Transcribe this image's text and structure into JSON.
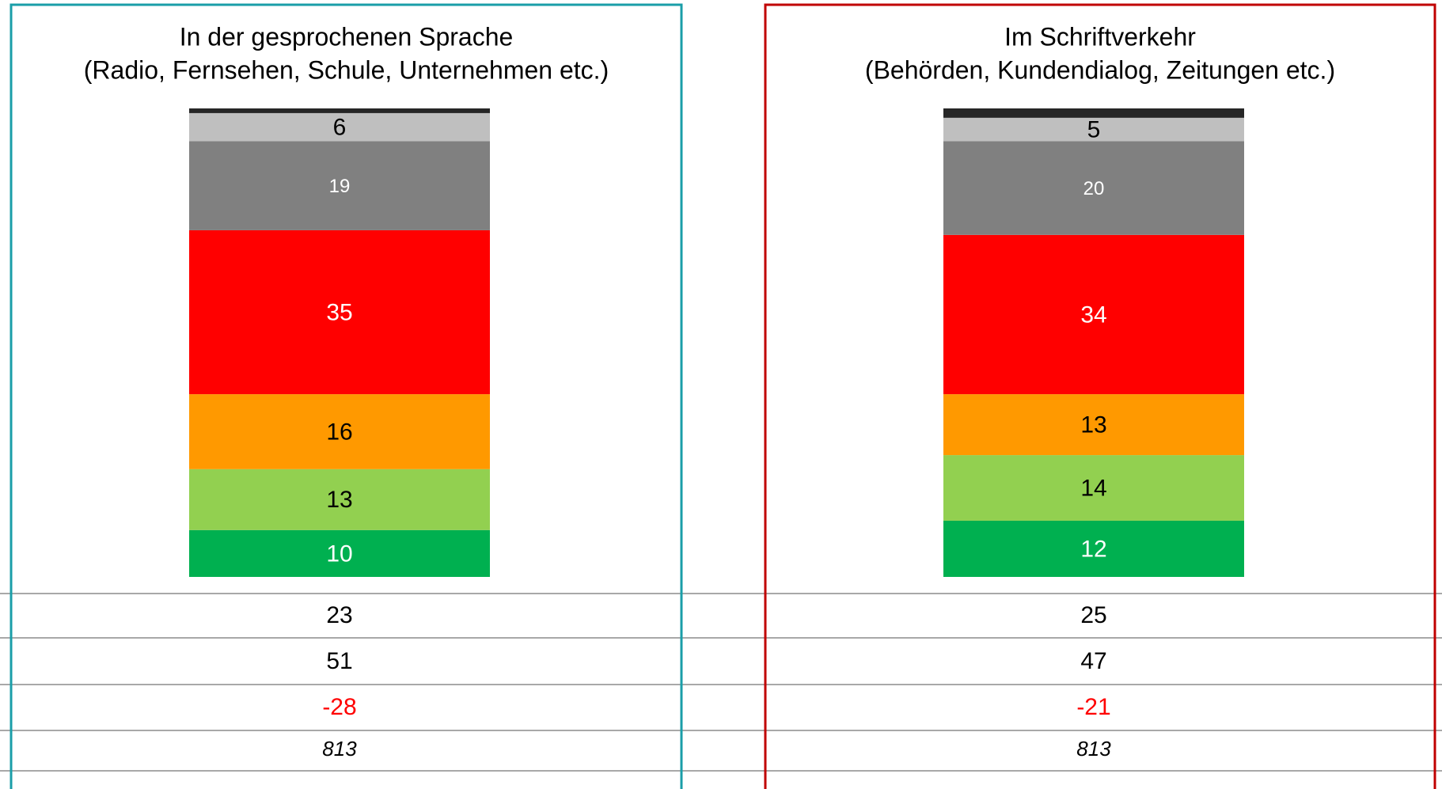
{
  "chart_data": [
    {
      "type": "stacked_bar",
      "title": "In der gesprochenen Sprache",
      "subtitle": "(Radio, Fernsehen, Schule, Unternehmen etc.)",
      "ylim": [
        0,
        100
      ],
      "frame_color": "#1a9ea8",
      "series": [
        {
          "color": "#00b050",
          "label_color": "#ffffff",
          "values": [
            10
          ]
        },
        {
          "color": "#92d050",
          "label_color": "#000000",
          "values": [
            13
          ]
        },
        {
          "color": "#ff9900",
          "label_color": "#000000",
          "values": [
            16
          ]
        },
        {
          "color": "#ff0000",
          "label_color": "#ffffff",
          "values": [
            35
          ]
        },
        {
          "color": "#808080",
          "label_color": "#ffffff",
          "values": [
            19
          ]
        },
        {
          "color": "#bfbfbf",
          "label_color": "#000000",
          "values": [
            6
          ]
        },
        {
          "color": "#262626",
          "values": [
            1
          ]
        }
      ],
      "summary": [
        23,
        51,
        -28,
        813
      ]
    },
    {
      "type": "stacked_bar",
      "title": "Im Schriftverkehr",
      "subtitle": "(Behörden, Kundendialog, Zeitungen etc.)",
      "ylim": [
        0,
        100
      ],
      "frame_color": "#c00000",
      "series": [
        {
          "color": "#00b050",
          "label_color": "#ffffff",
          "values": [
            12
          ]
        },
        {
          "color": "#92d050",
          "label_color": "#000000",
          "values": [
            14
          ]
        },
        {
          "color": "#ff9900",
          "label_color": "#000000",
          "values": [
            13
          ]
        },
        {
          "color": "#ff0000",
          "label_color": "#ffffff",
          "values": [
            34
          ]
        },
        {
          "color": "#808080",
          "label_color": "#ffffff",
          "values": [
            20
          ]
        },
        {
          "color": "#bfbfbf",
          "label_color": "#000000",
          "values": [
            5
          ]
        },
        {
          "color": "#262626",
          "values": [
            2
          ]
        }
      ],
      "summary": [
        25,
        47,
        -21,
        813
      ]
    }
  ]
}
